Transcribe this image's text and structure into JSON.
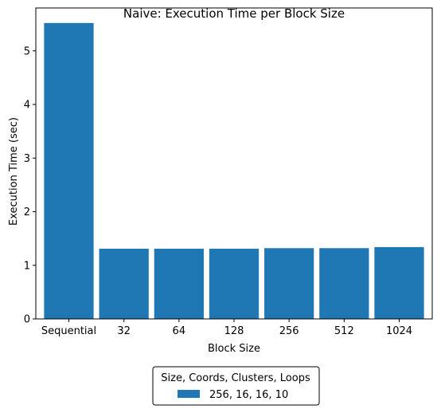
{
  "chart_data": {
    "type": "bar",
    "title": "Naive: Execution Time per Block Size",
    "xlabel": "Block Size",
    "ylabel": "Execution Time (sec)",
    "categories": [
      "Sequential",
      "32",
      "64",
      "128",
      "256",
      "512",
      "1024"
    ],
    "series": [
      {
        "name": "256, 16, 16, 10",
        "values": [
          5.52,
          1.31,
          1.31,
          1.31,
          1.32,
          1.32,
          1.34
        ],
        "color": "#1f77b4"
      }
    ],
    "ylim": [
      0,
      5.8
    ],
    "yticks": [
      "0",
      "1",
      "2",
      "3",
      "4",
      "5"
    ],
    "grid": false,
    "legend": {
      "title": "Size, Coords, Clusters, Loops",
      "placement": "below"
    }
  }
}
